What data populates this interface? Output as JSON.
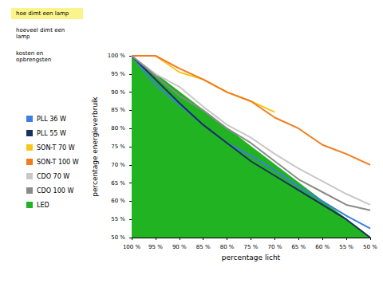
{
  "navigation": {
    "items": [
      "hoe dimt een lamp",
      "hoeveel dimt een lamp",
      "kosten en opbrengsten"
    ],
    "active": "hoe dimt een lamp"
  },
  "chart_data": {
    "type": "line",
    "x_label": "percentage licht",
    "y_label": "percentage energieverbruik",
    "x": [
      100,
      95,
      90,
      85,
      80,
      75,
      70,
      65,
      60,
      55,
      50
    ],
    "xlim": [
      100,
      50
    ],
    "xticks": [
      {
        "value": 100,
        "label": "100 %"
      },
      {
        "value": 95,
        "label": "95 %"
      },
      {
        "value": 90,
        "label": "90 %"
      },
      {
        "value": 85,
        "label": "85 %"
      },
      {
        "value": 80,
        "label": "80 %"
      },
      {
        "value": 75,
        "label": "75 %"
      },
      {
        "value": 70,
        "label": "70 %"
      },
      {
        "value": 65,
        "label": "65 %"
      },
      {
        "value": 60,
        "label": "60 %"
      },
      {
        "value": 55,
        "label": "55 %"
      },
      {
        "value": 50,
        "label": "50 %"
      }
    ],
    "ylim": [
      50,
      100
    ],
    "yticks": [
      {
        "value": 50,
        "label": "50 %"
      },
      {
        "value": 55,
        "label": "55 %"
      },
      {
        "value": 60,
        "label": "60 %"
      },
      {
        "value": 65,
        "label": "65 %"
      },
      {
        "value": 70,
        "label": "70 %"
      },
      {
        "value": 75,
        "label": "75 %"
      },
      {
        "value": 80,
        "label": "80 %"
      },
      {
        "value": 85,
        "label": "85 %"
      },
      {
        "value": 90,
        "label": "90 %"
      },
      {
        "value": 95,
        "label": "95 %"
      },
      {
        "value": 100,
        "label": "100 %"
      }
    ],
    "grid": false,
    "legend": "left",
    "series": [
      {
        "name": "PLL 36 W",
        "color": "#3d7fe0",
        "type": "line",
        "values": [
          100,
          92,
          86.5,
          81,
          76,
          72.5,
          68.5,
          64,
          60,
          56,
          52.5
        ]
      },
      {
        "name": "PLL 55 W",
        "color": "#1a2f5e",
        "type": "line",
        "values": [
          100,
          93.5,
          87,
          81,
          76,
          71,
          67,
          63,
          59,
          55,
          50
        ]
      },
      {
        "name": "SON-T 70 W",
        "color": "#f9c519",
        "type": "line",
        "values": [
          100,
          100,
          95.5,
          93.5,
          90,
          87.5,
          84.5,
          null,
          null,
          null,
          null
        ]
      },
      {
        "name": "SON-T 100 W",
        "color": "#f07c1e",
        "type": "line",
        "values": [
          100,
          100,
          96.5,
          93.5,
          90,
          87.5,
          83,
          80,
          75.5,
          73,
          70
        ]
      },
      {
        "name": "CDO 70 W",
        "color": "#c8c8c8",
        "type": "line",
        "values": [
          100,
          95,
          91.5,
          86,
          81,
          77.5,
          73,
          69,
          65.5,
          62,
          59
        ]
      },
      {
        "name": "CDO 100 W",
        "color": "#8a8a8a",
        "type": "line",
        "values": [
          100,
          94.5,
          89,
          85,
          80,
          76,
          71,
          66,
          62.5,
          59,
          57.5
        ]
      },
      {
        "name": "LED",
        "color": "#22b322",
        "type": "area",
        "values": [
          100,
          95,
          90,
          85,
          80,
          75,
          70,
          65,
          60,
          55,
          50
        ]
      }
    ]
  }
}
